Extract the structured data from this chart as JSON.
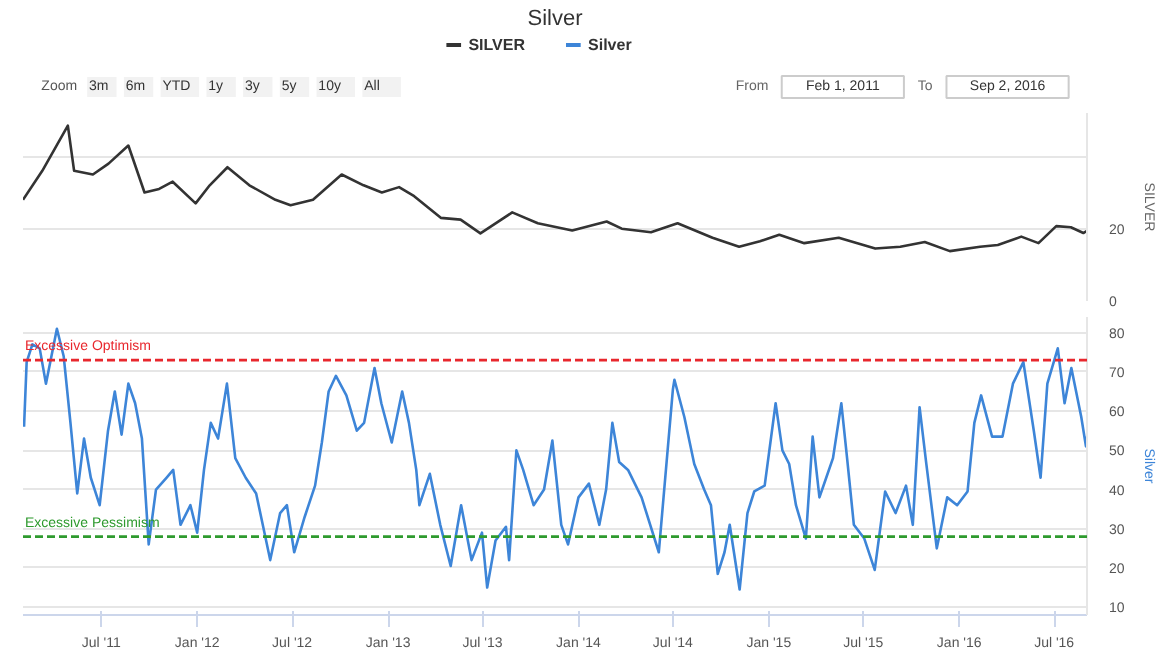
{
  "chart_data": [
    {
      "type": "line",
      "title": "Silver",
      "ylabel": "SILVER",
      "legend": "top",
      "grid": "y",
      "tick_labels": "y",
      "annotations": [
        "Zoom",
        "3m",
        "6m",
        "YTD",
        "1y",
        "3y",
        "5y",
        "10y",
        "All",
        "From",
        "Feb 1, 2011",
        "To",
        "Sep 2, 2016"
      ],
      "xlim": [
        "2011-02-01",
        "2016-09-02"
      ],
      "ylim": [
        0,
        52
      ],
      "yticks": [
        0,
        20,
        {
          "value": 40,
          "label": null
        }
      ],
      "series": [
        {
          "name": "SILVER",
          "color": "#333333",
          "x": [
            "2011-02-01",
            "2011-03-10",
            "2011-04-28",
            "2011-05-10",
            "2011-06-15",
            "2011-07-15",
            "2011-08-22",
            "2011-09-22",
            "2011-10-20",
            "2011-11-15",
            "2011-12-29",
            "2012-01-25",
            "2012-02-28",
            "2012-04-10",
            "2012-05-30",
            "2012-06-28",
            "2012-08-10",
            "2012-10-04",
            "2012-11-15",
            "2012-12-20",
            "2013-01-22",
            "2013-02-20",
            "2013-04-12",
            "2013-05-20",
            "2013-06-27",
            "2013-08-27",
            "2013-10-15",
            "2013-12-20",
            "2014-02-24",
            "2014-03-25",
            "2014-05-20",
            "2014-07-10",
            "2014-09-15",
            "2014-11-05",
            "2014-12-15",
            "2015-01-21",
            "2015-03-10",
            "2015-05-15",
            "2015-07-24",
            "2015-09-10",
            "2015-10-27",
            "2015-12-14",
            "2016-02-10",
            "2016-03-15",
            "2016-04-29",
            "2016-06-01",
            "2016-07-05",
            "2016-08-02",
            "2016-08-26",
            "2016-09-02"
          ],
          "values": [
            28,
            36,
            48.5,
            36,
            35,
            38,
            43,
            30,
            31,
            33,
            27,
            32,
            37,
            32,
            28,
            26.5,
            28,
            35,
            32,
            30,
            31.5,
            29,
            23,
            22.5,
            18.7,
            24.5,
            21.5,
            19.5,
            22,
            20,
            19,
            21.5,
            17.5,
            15,
            16.5,
            18.3,
            16,
            17.5,
            14.5,
            15,
            16.3,
            13.8,
            15,
            15.5,
            17.8,
            16,
            20.7,
            20.4,
            18.8,
            19.4
          ]
        }
      ]
    },
    {
      "type": "line",
      "ylabel": "Silver",
      "grid": "y",
      "xlim": [
        "2011-02-01",
        "2016-09-02"
      ],
      "xticks": [
        {
          "value": "2011-07-01",
          "label": "Jul '11"
        },
        {
          "value": "2012-01-01",
          "label": "Jan '12"
        },
        {
          "value": "2012-07-01",
          "label": "Jul '12"
        },
        {
          "value": "2013-01-01",
          "label": "Jan '13"
        },
        {
          "value": "2013-07-01",
          "label": "Jul '13"
        },
        {
          "value": "2014-01-01",
          "label": "Jan '14"
        },
        {
          "value": "2014-07-01",
          "label": "Jul '14"
        },
        {
          "value": "2015-01-01",
          "label": "Jan '15"
        },
        {
          "value": "2015-07-01",
          "label": "Jul '15"
        },
        {
          "value": "2016-01-01",
          "label": "Jan '16"
        },
        {
          "value": "2016-07-01",
          "label": "Jul '16"
        }
      ],
      "ylim": [
        8,
        84
      ],
      "yticks": [
        10,
        20,
        30,
        40,
        50,
        60,
        70,
        80
      ],
      "ref_lines": [
        {
          "axis": "y",
          "value": 73,
          "label": "Excessive Optimism",
          "color": "#e8272d",
          "line_style": "dashed"
        },
        {
          "axis": "y",
          "value": 28,
          "label": "Excessive Pessimism",
          "color": "#2e9a2e",
          "line_style": "dashed"
        }
      ],
      "series": [
        {
          "name": "Silver",
          "color": "#3d85d8",
          "x": [
            "2011-02-03",
            "2011-02-08",
            "2011-02-19",
            "2011-03-05",
            "2011-03-17",
            "2011-04-07",
            "2011-04-20",
            "2011-05-03",
            "2011-05-16",
            "2011-05-29",
            "2011-06-11",
            "2011-06-28",
            "2011-07-14",
            "2011-07-27",
            "2011-08-09",
            "2011-08-22",
            "2011-09-04",
            "2011-09-17",
            "2011-09-30",
            "2011-10-14",
            "2011-11-03",
            "2011-11-16",
            "2011-11-30",
            "2011-12-19",
            "2012-01-01",
            "2012-01-14",
            "2012-01-27",
            "2012-02-10",
            "2012-02-27",
            "2012-03-14",
            "2012-04-03",
            "2012-04-23",
            "2012-05-20",
            "2012-06-08",
            "2012-06-21",
            "2012-07-05",
            "2012-07-25",
            "2012-08-14",
            "2012-08-27",
            "2012-09-09",
            "2012-09-23",
            "2012-10-13",
            "2012-11-02",
            "2012-11-16",
            "2012-12-06",
            "2012-12-19",
            "2013-01-08",
            "2013-01-28",
            "2013-02-10",
            "2013-02-24",
            "2013-03-02",
            "2013-03-22",
            "2013-04-11",
            "2013-05-01",
            "2013-05-21",
            "2013-06-10",
            "2013-06-30",
            "2013-07-10",
            "2013-07-26",
            "2013-08-15",
            "2013-08-21",
            "2013-09-04",
            "2013-09-17",
            "2013-10-07",
            "2013-10-27",
            "2013-11-12",
            "2013-11-29",
            "2013-12-12",
            "2014-01-01",
            "2014-01-21",
            "2014-02-10",
            "2014-02-23",
            "2014-03-07",
            "2014-03-20",
            "2014-04-06",
            "2014-05-02",
            "2014-06-04",
            "2014-07-01",
            "2014-07-04",
            "2014-07-23",
            "2014-08-11",
            "2014-08-30",
            "2014-09-12",
            "2014-09-25",
            "2014-10-08",
            "2014-10-18",
            "2014-11-06",
            "2014-11-21",
            "2014-12-04",
            "2014-12-24",
            "2015-01-14",
            "2015-01-27",
            "2015-02-09",
            "2015-02-22",
            "2015-03-13",
            "2015-03-26",
            "2015-04-08",
            "2015-04-21",
            "2015-05-04",
            "2015-05-20",
            "2015-05-31",
            "2015-06-13",
            "2015-07-03",
            "2015-07-23",
            "2015-08-12",
            "2015-09-01",
            "2015-09-21",
            "2015-10-04",
            "2015-10-17",
            "2015-10-30",
            "2015-11-19",
            "2015-12-09",
            "2015-12-28",
            "2016-01-17",
            "2016-01-30",
            "2016-02-12",
            "2016-03-04",
            "2016-03-24",
            "2016-04-13",
            "2016-05-03",
            "2016-05-23",
            "2016-06-05",
            "2016-06-18",
            "2016-07-08",
            "2016-07-21",
            "2016-08-03",
            "2016-08-22",
            "2016-08-31",
            "2016-09-02"
          ],
          "values": [
            56,
            72.5,
            77,
            76,
            67,
            81,
            74,
            57,
            39,
            53,
            43,
            36,
            55,
            65,
            54,
            67,
            62,
            53,
            26,
            40,
            43,
            45,
            31,
            36,
            29,
            45,
            57,
            53,
            67,
            48,
            43,
            39,
            22,
            34,
            36,
            24,
            33,
            41,
            52,
            65,
            69,
            64,
            55,
            57,
            71,
            62,
            52,
            65,
            57,
            45,
            36,
            44,
            31,
            20.5,
            36,
            22,
            29,
            15,
            27,
            30.5,
            22,
            50,
            45,
            36,
            40,
            52.5,
            31,
            26,
            38,
            41.5,
            31,
            40,
            57,
            47,
            45,
            38,
            24,
            65.5,
            68,
            58.5,
            46.5,
            40,
            36,
            18.5,
            24,
            31,
            14.5,
            34,
            39.5,
            41,
            62,
            50,
            46.5,
            36,
            27.5,
            53.5,
            38,
            43,
            48,
            62,
            48,
            31,
            27.5,
            19.5,
            39.5,
            34,
            41,
            31,
            61,
            46.5,
            25,
            38,
            36,
            39.5,
            57,
            64,
            53.5,
            53.5,
            67,
            72.5,
            55,
            43,
            67,
            76,
            62,
            71,
            58.5,
            51,
            53.5
          ]
        }
      ]
    }
  ]
}
